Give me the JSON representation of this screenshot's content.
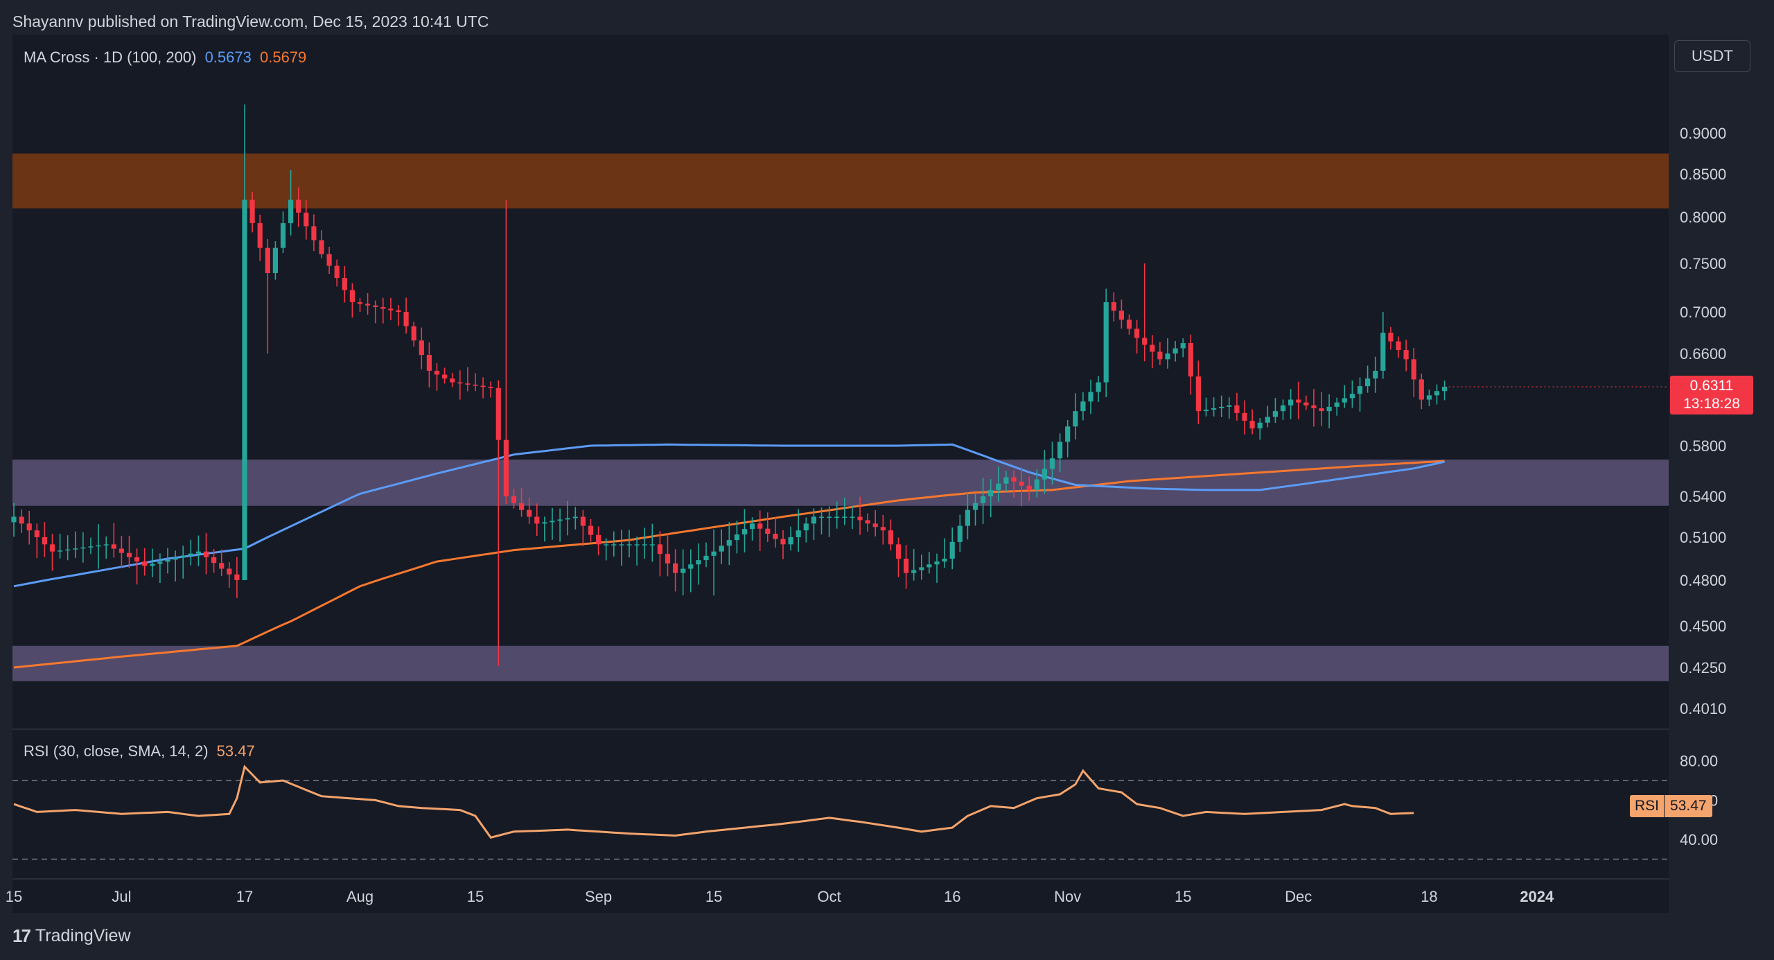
{
  "header": {
    "published_text": "Shayannv published on TradingView.com, Dec 15, 2023 10:41 UTC"
  },
  "legend": {
    "ma_cross_label": "MA Cross · 1D (100, 200)",
    "ma100_value": "0.5673",
    "ma200_value": "0.5679",
    "rsi_label": "RSI (30, close, SMA, 14, 2)",
    "rsi_value": "53.47"
  },
  "toolbar": {
    "currency_button": "USDT"
  },
  "price_badge": {
    "price": "0.6311",
    "countdown": "13:18:28"
  },
  "rsi_badge": {
    "label": "RSI",
    "value": "53.47"
  },
  "footer": {
    "logo_mark": "17",
    "logo_text": "TradingView"
  },
  "colors": {
    "bull": "#26a69a",
    "bear": "#f23645",
    "ma100": "#5b9cf6",
    "ma200": "#f7782f",
    "rsi": "#f4a46c",
    "supply_zone": "#7a3a12",
    "demand_zone": "#5c5478"
  },
  "chart_data": [
    {
      "type": "candlestick",
      "title": "",
      "y_axis_ticks": [
        0.9,
        0.85,
        0.8,
        0.75,
        0.7,
        0.66,
        0.58,
        0.54,
        0.51,
        0.48,
        0.45,
        0.425,
        0.401
      ],
      "y_axis_tick_labels": [
        "0.9000",
        "0.8500",
        "0.8000",
        "0.7500",
        "0.7000",
        "0.6600",
        "0.5800",
        "0.5400",
        "0.5100",
        "0.4800",
        "0.4500",
        "0.4250",
        "0.4010"
      ],
      "x_axis_labels": [
        "15",
        "Jul",
        "17",
        "Aug",
        "15",
        "Sep",
        "15",
        "Oct",
        "16",
        "Nov",
        "15",
        "Dec",
        "18",
        "2024"
      ],
      "x_axis_label_bar_index": [
        0,
        14,
        30,
        45,
        60,
        76,
        91,
        106,
        122,
        137,
        152,
        167,
        184,
        198
      ],
      "zones": [
        {
          "name": "supply-zone",
          "low": 0.81,
          "high": 0.875,
          "color": "#7a3a12"
        },
        {
          "name": "mid-zone",
          "low": 0.533,
          "high": 0.569,
          "color": "#5c5478"
        },
        {
          "name": "demand-zone",
          "low": 0.417,
          "high": 0.438,
          "color": "#5c5478"
        }
      ],
      "last_price": 0.6311,
      "candle_anchors": [
        [
          0,
          0.525
        ],
        [
          5,
          0.5
        ],
        [
          12,
          0.505
        ],
        [
          17,
          0.49
        ],
        [
          24,
          0.5
        ],
        [
          29,
          0.48
        ],
        [
          30,
          0.82
        ],
        [
          33,
          0.74
        ],
        [
          36,
          0.82
        ],
        [
          40,
          0.76
        ],
        [
          44,
          0.71
        ],
        [
          50,
          0.7
        ],
        [
          54,
          0.645
        ],
        [
          57,
          0.635
        ],
        [
          62,
          0.63
        ],
        [
          64,
          0.54
        ],
        [
          68,
          0.52
        ],
        [
          73,
          0.525
        ],
        [
          76,
          0.505
        ],
        [
          83,
          0.505
        ],
        [
          86,
          0.485
        ],
        [
          91,
          0.5
        ],
        [
          96,
          0.52
        ],
        [
          100,
          0.505
        ],
        [
          104,
          0.525
        ],
        [
          109,
          0.525
        ],
        [
          113,
          0.515
        ],
        [
          116,
          0.485
        ],
        [
          121,
          0.495
        ],
        [
          124,
          0.53
        ],
        [
          129,
          0.555
        ],
        [
          132,
          0.545
        ],
        [
          135,
          0.57
        ],
        [
          138,
          0.61
        ],
        [
          141,
          0.635
        ],
        [
          142,
          0.71
        ],
        [
          146,
          0.675
        ],
        [
          149,
          0.655
        ],
        [
          152,
          0.67
        ],
        [
          154,
          0.61
        ],
        [
          158,
          0.615
        ],
        [
          161,
          0.595
        ],
        [
          166,
          0.62
        ],
        [
          170,
          0.61
        ],
        [
          174,
          0.625
        ],
        [
          177,
          0.645
        ],
        [
          178,
          0.68
        ],
        [
          181,
          0.655
        ],
        [
          183,
          0.62
        ],
        [
          186,
          0.6311
        ]
      ],
      "ma100_anchors": [
        [
          0,
          0.476
        ],
        [
          20,
          0.495
        ],
        [
          30,
          0.502
        ],
        [
          36,
          0.518
        ],
        [
          45,
          0.542
        ],
        [
          55,
          0.558
        ],
        [
          65,
          0.573
        ],
        [
          75,
          0.58
        ],
        [
          85,
          0.581
        ],
        [
          100,
          0.58
        ],
        [
          115,
          0.58
        ],
        [
          122,
          0.581
        ],
        [
          127,
          0.57
        ],
        [
          132,
          0.559
        ],
        [
          138,
          0.549
        ],
        [
          148,
          0.546
        ],
        [
          155,
          0.545
        ],
        [
          162,
          0.545
        ],
        [
          168,
          0.55
        ],
        [
          175,
          0.556
        ],
        [
          182,
          0.562
        ],
        [
          186,
          0.5673
        ]
      ],
      "ma200_anchors": [
        [
          0,
          0.425
        ],
        [
          15,
          0.432
        ],
        [
          29,
          0.438
        ],
        [
          36,
          0.453
        ],
        [
          45,
          0.476
        ],
        [
          55,
          0.493
        ],
        [
          65,
          0.501
        ],
        [
          80,
          0.508
        ],
        [
          100,
          0.525
        ],
        [
          115,
          0.537
        ],
        [
          125,
          0.543
        ],
        [
          135,
          0.545
        ],
        [
          145,
          0.552
        ],
        [
          160,
          0.558
        ],
        [
          175,
          0.564
        ],
        [
          186,
          0.5679
        ]
      ]
    },
    {
      "type": "line",
      "title": "",
      "name": "RSI",
      "y_axis_ticks": [
        80.0,
        60.0,
        40.0
      ],
      "y_axis_tick_labels": [
        "80.00",
        "60.00",
        "40.00"
      ],
      "upper_band": 70,
      "lower_band": 30,
      "ylim": [
        27,
        82
      ],
      "rsi_anchors": [
        [
          0,
          58
        ],
        [
          3,
          54
        ],
        [
          8,
          55
        ],
        [
          14,
          53
        ],
        [
          20,
          54
        ],
        [
          24,
          52
        ],
        [
          28,
          53
        ],
        [
          29,
          61
        ],
        [
          30,
          77
        ],
        [
          32,
          69
        ],
        [
          35,
          70
        ],
        [
          40,
          62
        ],
        [
          47,
          60
        ],
        [
          50,
          57
        ],
        [
          53,
          56
        ],
        [
          58,
          55
        ],
        [
          60,
          52
        ],
        [
          62,
          41
        ],
        [
          65,
          44
        ],
        [
          72,
          45
        ],
        [
          80,
          43
        ],
        [
          86,
          42
        ],
        [
          90,
          44
        ],
        [
          95,
          46
        ],
        [
          100,
          48
        ],
        [
          104,
          50
        ],
        [
          106,
          51
        ],
        [
          110,
          49
        ],
        [
          115,
          46
        ],
        [
          118,
          44
        ],
        [
          122,
          46
        ],
        [
          124,
          52
        ],
        [
          127,
          57
        ],
        [
          130,
          56
        ],
        [
          133,
          61
        ],
        [
          136,
          63
        ],
        [
          138,
          68
        ],
        [
          139,
          75
        ],
        [
          141,
          66
        ],
        [
          144,
          64
        ],
        [
          146,
          58
        ],
        [
          149,
          56
        ],
        [
          152,
          52
        ],
        [
          155,
          54
        ],
        [
          160,
          53
        ],
        [
          165,
          54
        ],
        [
          170,
          55
        ],
        [
          173,
          58
        ],
        [
          174,
          57
        ],
        [
          177,
          56
        ],
        [
          179,
          53
        ],
        [
          182,
          53.47
        ]
      ]
    }
  ]
}
